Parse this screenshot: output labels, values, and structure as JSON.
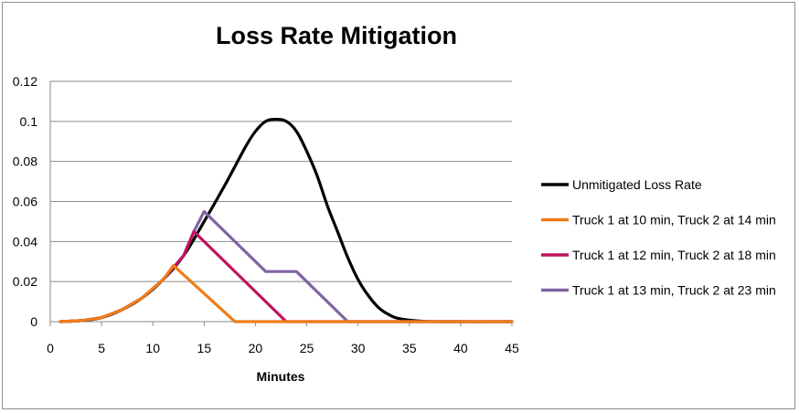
{
  "chart_data": {
    "type": "line",
    "title": "Loss Rate Mitigation",
    "xlabel": "Minutes",
    "ylabel": "",
    "xlim": [
      0,
      45
    ],
    "ylim": [
      0,
      0.12
    ],
    "x_ticks": [
      "0",
      "5",
      "10",
      "15",
      "20",
      "25",
      "30",
      "35",
      "40",
      "45"
    ],
    "y_ticks": [
      "0",
      "0.02",
      "0.04",
      "0.06",
      "0.08",
      "0.1",
      "0.12"
    ],
    "grid": "horizontal",
    "legend_position": "right",
    "series": [
      {
        "name": "Unmitigated  Loss Rate",
        "color": "#000000",
        "points": [
          [
            1,
            0
          ],
          [
            3,
            0.0005
          ],
          [
            5,
            0.002
          ],
          [
            7,
            0.006
          ],
          [
            9,
            0.012
          ],
          [
            11,
            0.021
          ],
          [
            13,
            0.033
          ],
          [
            15,
            0.05
          ],
          [
            17,
            0.068
          ],
          [
            19,
            0.087
          ],
          [
            20,
            0.095
          ],
          [
            21,
            0.1
          ],
          [
            22,
            0.101
          ],
          [
            23,
            0.1
          ],
          [
            24,
            0.095
          ],
          [
            25,
            0.085
          ],
          [
            26,
            0.073
          ],
          [
            27,
            0.058
          ],
          [
            28,
            0.045
          ],
          [
            29,
            0.032
          ],
          [
            30,
            0.021
          ],
          [
            31,
            0.013
          ],
          [
            32,
            0.007
          ],
          [
            33,
            0.0035
          ],
          [
            34,
            0.0015
          ],
          [
            36,
            0.0003
          ],
          [
            38,
            0
          ],
          [
            45,
            0
          ]
        ]
      },
      {
        "name": "Truck 1 at 10 min, Truck 2 at 14 min",
        "color": "#f07d19",
        "points": [
          [
            1,
            0
          ],
          [
            3,
            0.0005
          ],
          [
            5,
            0.002
          ],
          [
            7,
            0.006
          ],
          [
            9,
            0.012
          ],
          [
            11,
            0.021
          ],
          [
            12,
            0.028
          ],
          [
            18,
            0
          ],
          [
            45,
            0
          ]
        ]
      },
      {
        "name": "Truck 1 at 12 min, Truck 2 at 18 min",
        "color": "#c0125e",
        "points": [
          [
            1,
            0
          ],
          [
            3,
            0.0005
          ],
          [
            5,
            0.002
          ],
          [
            7,
            0.006
          ],
          [
            9,
            0.012
          ],
          [
            11,
            0.021
          ],
          [
            13,
            0.033
          ],
          [
            14,
            0.045
          ],
          [
            23,
            0
          ],
          [
            45,
            0
          ]
        ]
      },
      {
        "name": "Truck 1 at 13 min, Truck 2 at 23 min",
        "color": "#8064a2",
        "points": [
          [
            1,
            0
          ],
          [
            3,
            0.0005
          ],
          [
            5,
            0.002
          ],
          [
            7,
            0.006
          ],
          [
            9,
            0.012
          ],
          [
            11,
            0.021
          ],
          [
            13,
            0.033
          ],
          [
            14,
            0.045
          ],
          [
            15,
            0.055
          ],
          [
            21,
            0.025
          ],
          [
            24,
            0.025
          ],
          [
            29,
            0
          ],
          [
            45,
            0
          ]
        ]
      }
    ]
  }
}
